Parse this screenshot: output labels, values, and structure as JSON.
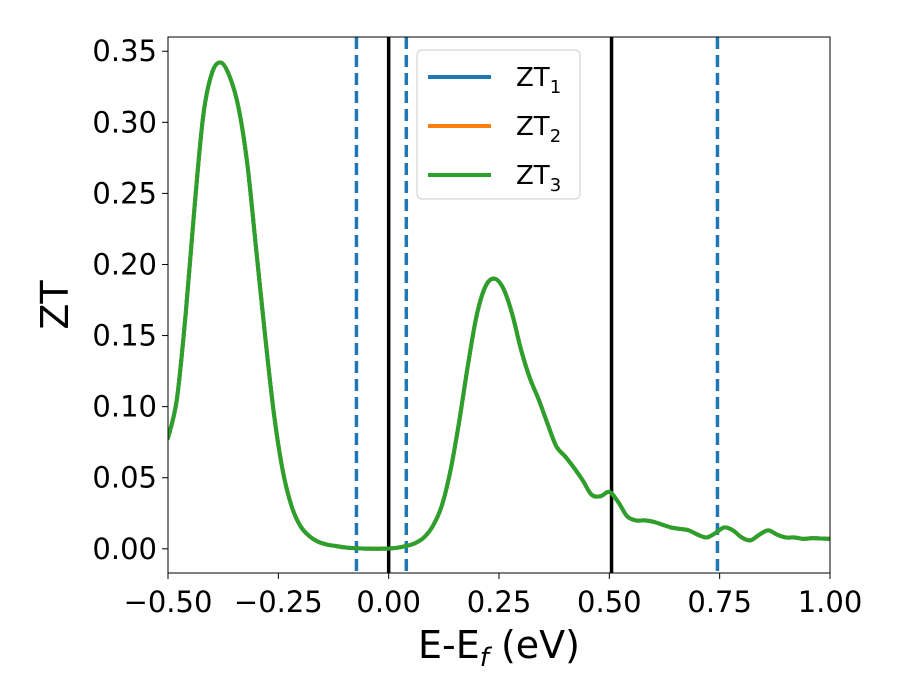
{
  "chart_data": {
    "type": "line",
    "title": "",
    "xlabel": "E-E",
    "xlabel_subscript": "f",
    "xlabel_unit": " (eV)",
    "ylabel": "ZT",
    "xlim": [
      -0.5,
      1.0
    ],
    "ylim": [
      -0.017,
      0.36
    ],
    "x_ticks": [
      -0.5,
      -0.25,
      0.0,
      0.25,
      0.5,
      0.75,
      1.0
    ],
    "x_tick_labels": [
      "−0.50",
      "−0.25",
      "0.00",
      "0.25",
      "0.50",
      "0.75",
      "1.00"
    ],
    "y_ticks": [
      0.0,
      0.05,
      0.1,
      0.15,
      0.2,
      0.25,
      0.3,
      0.35
    ],
    "y_tick_labels": [
      "0.00",
      "0.05",
      "0.10",
      "0.15",
      "0.20",
      "0.25",
      "0.30",
      "0.35"
    ],
    "grid": false,
    "legend_position": "upper center",
    "colors": {
      "ZT1": "#1f77b4",
      "ZT2": "#ff7f0e",
      "ZT3": "#2ca02c",
      "solid_vline": "#000000",
      "dashed_vline": "#1f77b4"
    },
    "legend": [
      {
        "base": "ZT",
        "sub": "1",
        "color": "#1f77b4"
      },
      {
        "base": "ZT",
        "sub": "2",
        "color": "#ff7f0e"
      },
      {
        "base": "ZT",
        "sub": "3",
        "color": "#2ca02c"
      }
    ],
    "vertical_lines": [
      {
        "x": -0.073,
        "style": "dashed",
        "color": "#1f77b4"
      },
      {
        "x": 0.0,
        "style": "solid",
        "color": "#000000"
      },
      {
        "x": 0.04,
        "style": "dashed",
        "color": "#1f77b4"
      },
      {
        "x": 0.505,
        "style": "solid",
        "color": "#000000"
      },
      {
        "x": 0.745,
        "style": "dashed",
        "color": "#1f77b4"
      }
    ],
    "x": [
      -0.5,
      -0.48,
      -0.46,
      -0.44,
      -0.42,
      -0.4,
      -0.38,
      -0.36,
      -0.34,
      -0.32,
      -0.3,
      -0.28,
      -0.26,
      -0.24,
      -0.22,
      -0.2,
      -0.18,
      -0.16,
      -0.14,
      -0.12,
      -0.1,
      -0.08,
      -0.06,
      -0.04,
      -0.02,
      0.0,
      0.02,
      0.04,
      0.06,
      0.08,
      0.1,
      0.12,
      0.14,
      0.16,
      0.18,
      0.2,
      0.22,
      0.24,
      0.26,
      0.28,
      0.3,
      0.32,
      0.34,
      0.36,
      0.38,
      0.4,
      0.42,
      0.44,
      0.46,
      0.48,
      0.5,
      0.52,
      0.54,
      0.56,
      0.58,
      0.6,
      0.62,
      0.64,
      0.66,
      0.68,
      0.7,
      0.72,
      0.74,
      0.76,
      0.78,
      0.8,
      0.82,
      0.84,
      0.86,
      0.88,
      0.9,
      0.92,
      0.94,
      0.96,
      0.98,
      1.0
    ],
    "series": [
      {
        "name": "ZT1",
        "values": [
          0.078,
          0.105,
          0.165,
          0.24,
          0.305,
          0.335,
          0.342,
          0.332,
          0.31,
          0.27,
          0.21,
          0.15,
          0.095,
          0.055,
          0.03,
          0.016,
          0.009,
          0.005,
          0.003,
          0.002,
          0.001,
          0.0005,
          0.0002,
          0.0001,
          0.0001,
          0.0002,
          0.0008,
          0.002,
          0.004,
          0.008,
          0.016,
          0.03,
          0.055,
          0.09,
          0.13,
          0.165,
          0.185,
          0.19,
          0.183,
          0.165,
          0.14,
          0.12,
          0.105,
          0.088,
          0.072,
          0.065,
          0.057,
          0.048,
          0.038,
          0.037,
          0.04,
          0.033,
          0.023,
          0.02,
          0.02,
          0.019,
          0.017,
          0.015,
          0.014,
          0.013,
          0.01,
          0.008,
          0.011,
          0.015,
          0.013,
          0.008,
          0.006,
          0.01,
          0.013,
          0.01,
          0.008,
          0.008,
          0.007,
          0.0075,
          0.0073,
          0.007
        ]
      },
      {
        "name": "ZT2",
        "values": [
          0.078,
          0.105,
          0.165,
          0.24,
          0.305,
          0.335,
          0.342,
          0.332,
          0.31,
          0.27,
          0.21,
          0.15,
          0.095,
          0.055,
          0.03,
          0.016,
          0.009,
          0.005,
          0.003,
          0.002,
          0.001,
          0.0005,
          0.0002,
          0.0001,
          0.0001,
          0.0002,
          0.0008,
          0.002,
          0.004,
          0.008,
          0.016,
          0.03,
          0.055,
          0.09,
          0.13,
          0.165,
          0.185,
          0.19,
          0.183,
          0.165,
          0.14,
          0.12,
          0.105,
          0.088,
          0.072,
          0.065,
          0.057,
          0.048,
          0.038,
          0.037,
          0.04,
          0.033,
          0.023,
          0.02,
          0.02,
          0.019,
          0.017,
          0.015,
          0.014,
          0.013,
          0.01,
          0.008,
          0.011,
          0.015,
          0.013,
          0.008,
          0.006,
          0.01,
          0.013,
          0.01,
          0.008,
          0.008,
          0.007,
          0.0075,
          0.0073,
          0.007
        ]
      },
      {
        "name": "ZT3",
        "values": [
          0.078,
          0.105,
          0.165,
          0.24,
          0.305,
          0.335,
          0.342,
          0.332,
          0.31,
          0.27,
          0.21,
          0.15,
          0.095,
          0.055,
          0.03,
          0.016,
          0.009,
          0.005,
          0.003,
          0.002,
          0.001,
          0.0005,
          0.0002,
          0.0001,
          0.0001,
          0.0002,
          0.0008,
          0.002,
          0.004,
          0.008,
          0.016,
          0.03,
          0.055,
          0.09,
          0.13,
          0.165,
          0.185,
          0.19,
          0.183,
          0.165,
          0.14,
          0.12,
          0.105,
          0.088,
          0.072,
          0.065,
          0.057,
          0.048,
          0.038,
          0.037,
          0.04,
          0.033,
          0.023,
          0.02,
          0.02,
          0.019,
          0.017,
          0.015,
          0.014,
          0.013,
          0.01,
          0.008,
          0.011,
          0.015,
          0.013,
          0.008,
          0.006,
          0.01,
          0.013,
          0.01,
          0.008,
          0.008,
          0.007,
          0.0075,
          0.0073,
          0.007
        ]
      }
    ]
  }
}
